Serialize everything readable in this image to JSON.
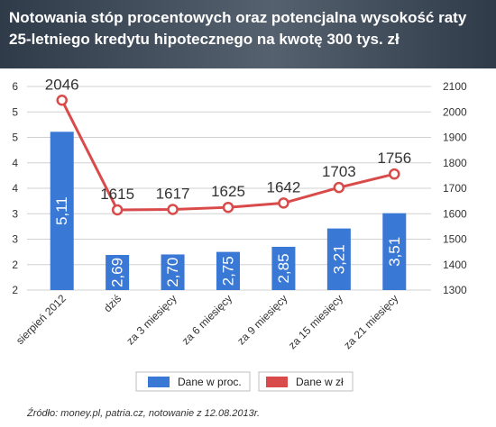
{
  "chart_data": {
    "type": "bar+line",
    "title": "Notowania stóp procentowych oraz potencjalna wysokość raty 25-letniego kredytu hipotecznego na kwotę 300 tys. zł",
    "title_lines": [
      "Notowania stóp procentowych oraz potencjalna wysokość raty",
      "25-letniego kredytu hipotecznego na kwotę 300 tys. zł"
    ],
    "categories": [
      "sierpień 2012",
      "dziś",
      "za 3 miesięcy",
      "za 6 miesięcy",
      "za 9 miesięcy",
      "za 15 miesięcy",
      "za 21 miesięcy"
    ],
    "series": [
      {
        "name": "Dane w proc.",
        "type": "bar",
        "axis": "left",
        "values": [
          5.11,
          2.69,
          2.7,
          2.75,
          2.85,
          3.21,
          3.51
        ],
        "labels": [
          "5,11",
          "2,69",
          "2,70",
          "2,75",
          "2,85",
          "3,21",
          "3,51"
        ],
        "color": "#3a78d6"
      },
      {
        "name": "Dane w zł",
        "type": "line",
        "axis": "right",
        "values": [
          2046,
          1615,
          1617,
          1625,
          1642,
          1703,
          1756
        ],
        "labels": [
          "2046",
          "1615",
          "1617",
          "1625",
          "1642",
          "1703",
          "1756"
        ],
        "color": "#d94a4a"
      }
    ],
    "y_left": {
      "ylim": [
        2,
        6
      ],
      "tick_labels": [
        "2",
        "2",
        "3",
        "3",
        "4",
        "4",
        "5",
        "5",
        "6"
      ]
    },
    "y_right": {
      "ylim": [
        1300,
        2100
      ],
      "tick_labels": [
        "1300",
        "1400",
        "1500",
        "1600",
        "1700",
        "1800",
        "1900",
        "2000",
        "2100"
      ]
    },
    "grid": true,
    "legend": {
      "position": "bottom-center",
      "items": [
        "Dane w proc.",
        "Dane w zł"
      ]
    },
    "source": "Źródło: money.pl, patria.cz, notowanie z 12.08.2013r.",
    "colors": {
      "bar": "#3a78d6",
      "line": "#d94a4a",
      "grid": "#d0d0d0",
      "header": "#3f4d5c",
      "bg": "#ffffff"
    }
  }
}
